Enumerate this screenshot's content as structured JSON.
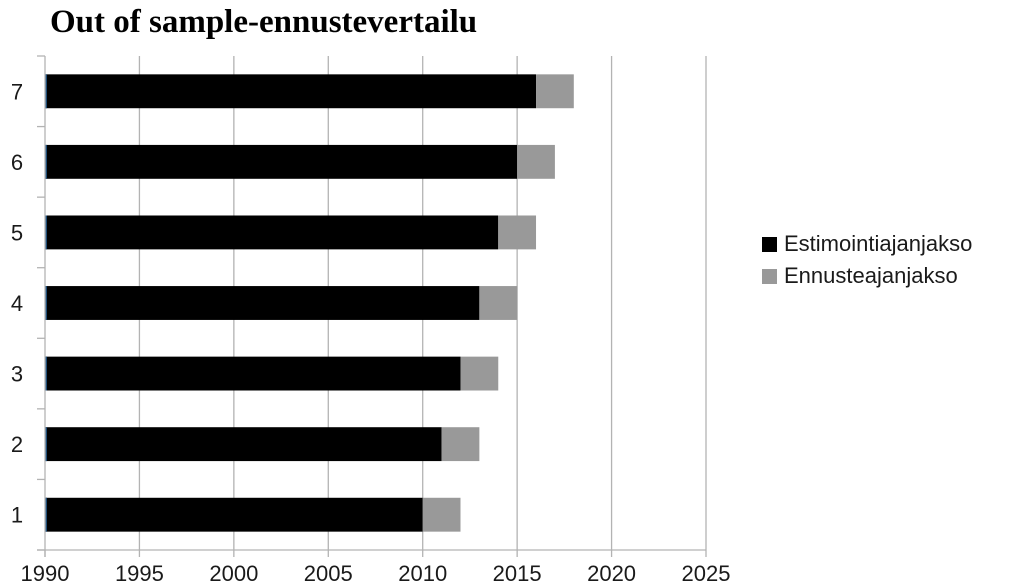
{
  "chart_data": {
    "type": "bar",
    "orientation": "horizontal",
    "stacked": true,
    "title": "Out of sample-ennustevertailu",
    "categories": [
      "1",
      "2",
      "3",
      "4",
      "5",
      "6",
      "7"
    ],
    "series": [
      {
        "name": "Estimointiajanjakso",
        "color": "#000000",
        "start": [
          1990,
          1990,
          1990,
          1990,
          1990,
          1990,
          1990
        ],
        "end": [
          2010,
          2011,
          2012,
          2013,
          2014,
          2015,
          2016
        ]
      },
      {
        "name": "Ennusteajanjakso",
        "color": "#999999",
        "start": [
          2010,
          2011,
          2012,
          2013,
          2014,
          2015,
          2016
        ],
        "end": [
          2012,
          2013,
          2014,
          2015,
          2016,
          2017,
          2018
        ]
      }
    ],
    "xlim": [
      1990,
      2025
    ],
    "xticks": [
      1990,
      1995,
      2000,
      2005,
      2010,
      2015,
      2020,
      2025
    ],
    "xtick_labels": [
      "1990",
      "1995",
      "2000",
      "2005",
      "2010",
      "2015",
      "2020",
      "2025"
    ],
    "grid": "vertical",
    "legend_position": "right"
  }
}
